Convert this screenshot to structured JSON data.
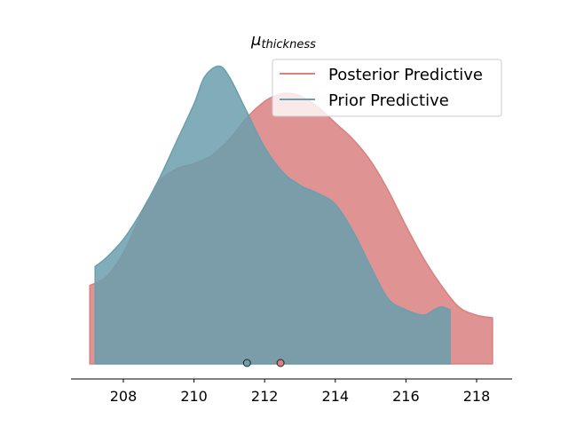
{
  "chart_data": {
    "type": "area",
    "title_main": "μ",
    "title_sub": "thickness",
    "xlabel": "",
    "ylabel": "",
    "xlim": [
      206.5,
      219.0
    ],
    "xticks": [
      208,
      210,
      212,
      214,
      216,
      218
    ],
    "grid": false,
    "legend_position": "top-right",
    "series": [
      {
        "name": "Posterior Predictive",
        "color": "#d98080",
        "x": [
          207.05,
          207.5,
          208.0,
          208.5,
          209.0,
          209.5,
          210.0,
          210.5,
          211.0,
          211.5,
          212.0,
          212.3,
          212.6,
          213.0,
          213.5,
          214.0,
          214.5,
          215.0,
          215.5,
          216.0,
          216.5,
          217.0,
          217.5,
          218.0,
          218.45
        ],
        "density": [
          0.29,
          0.32,
          0.41,
          0.55,
          0.67,
          0.72,
          0.74,
          0.77,
          0.83,
          0.91,
          0.97,
          0.99,
          1.0,
          0.99,
          0.95,
          0.89,
          0.83,
          0.75,
          0.64,
          0.51,
          0.39,
          0.29,
          0.21,
          0.18,
          0.17
        ],
        "mean_marker": 212.45
      },
      {
        "name": "Prior Predictive",
        "color": "#6a9fad",
        "x": [
          207.2,
          207.5,
          208.0,
          208.5,
          209.0,
          209.5,
          210.0,
          210.3,
          210.7,
          211.0,
          211.5,
          212.0,
          212.5,
          213.0,
          213.5,
          214.0,
          214.5,
          215.0,
          215.5,
          216.0,
          216.5,
          216.8,
          217.0,
          217.25
        ],
        "density": [
          0.36,
          0.39,
          0.46,
          0.56,
          0.68,
          0.82,
          0.96,
          1.06,
          1.1,
          1.06,
          0.93,
          0.8,
          0.71,
          0.66,
          0.63,
          0.59,
          0.49,
          0.36,
          0.24,
          0.2,
          0.18,
          0.2,
          0.21,
          0.2
        ],
        "mean_marker": 211.5
      }
    ]
  }
}
